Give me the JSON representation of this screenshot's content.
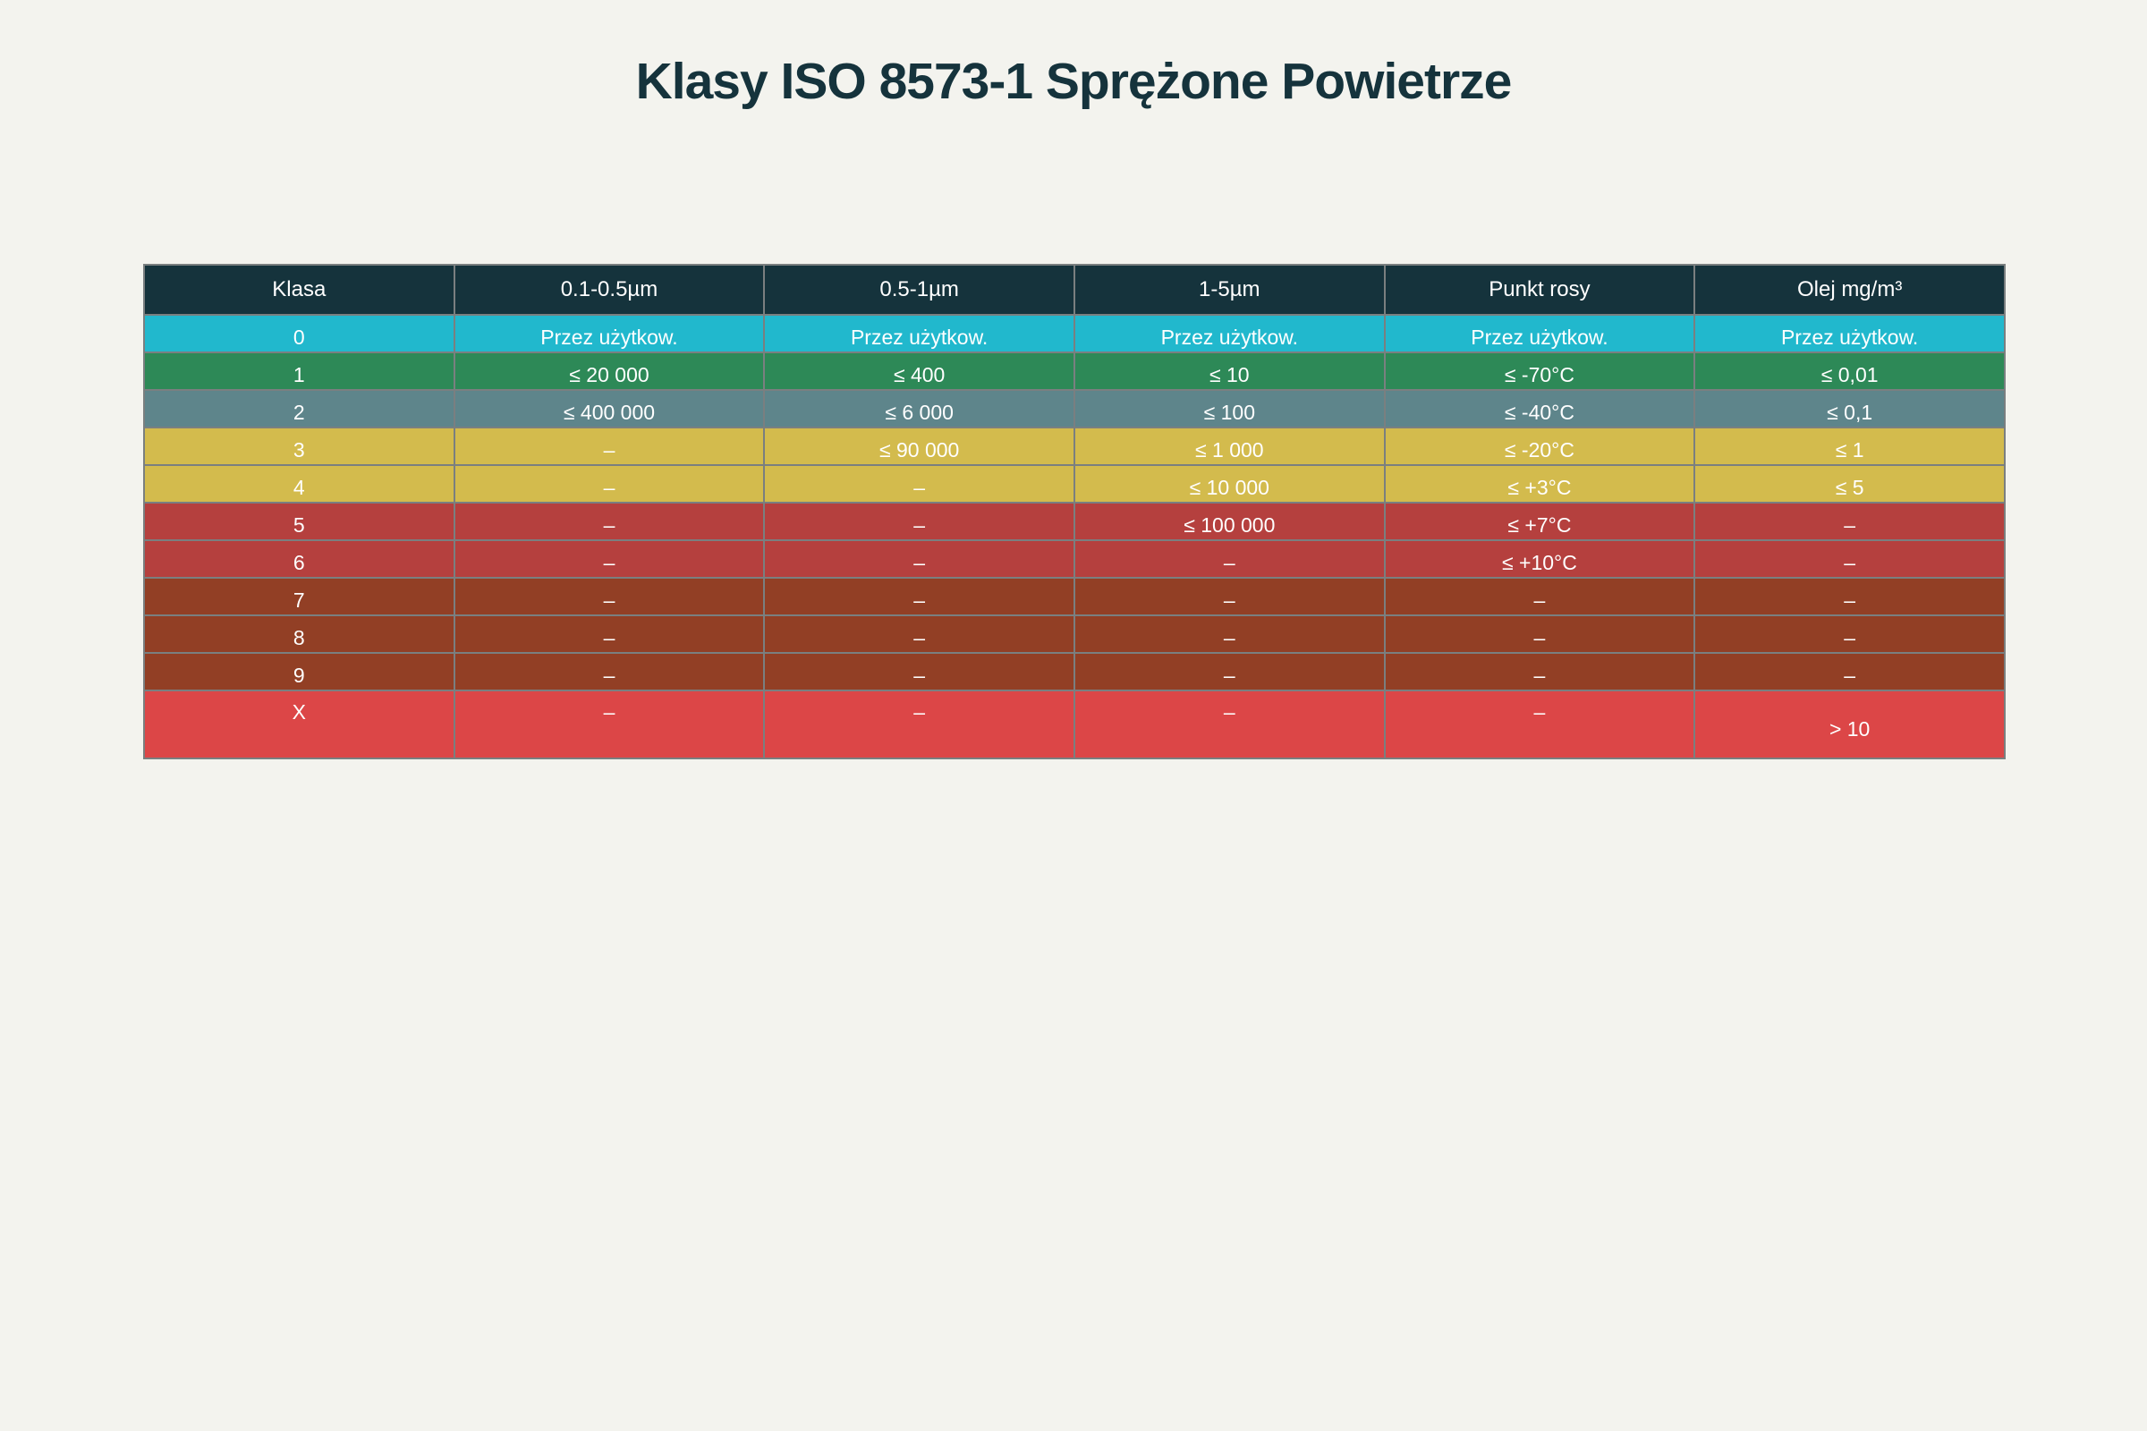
{
  "title": "Klasy ISO 8573-1 Sprężone Powietrze",
  "chart_data": {
    "type": "table",
    "columns": [
      "Klasa",
      "0.1-0.5µm",
      "0.5-1µm",
      "1-5µm",
      "Punkt rosy",
      "Olej mg/m³"
    ],
    "header_color": "#15333c",
    "rows": [
      {
        "color": "#21b8cd",
        "cells": [
          "0",
          "Przez użytkow.",
          "Przez użytkow.",
          "Przez użytkow.",
          "Przez użytkow.",
          "Przez użytkow."
        ]
      },
      {
        "color": "#2d8957",
        "cells": [
          "1",
          "≤ 20 000",
          "≤ 400",
          "≤ 10",
          "≤ -70°C",
          "≤ 0,01"
        ]
      },
      {
        "color": "#5e858b",
        "cells": [
          "2",
          "≤ 400 000",
          "≤ 6 000",
          "≤ 100",
          "≤ -40°C",
          "≤ 0,1"
        ]
      },
      {
        "color": "#d3bb4d",
        "cells": [
          "3",
          "–",
          "≤ 90 000",
          "≤ 1 000",
          "≤ -20°C",
          "≤ 1"
        ]
      },
      {
        "color": "#d3bb4d",
        "cells": [
          "4",
          "–",
          "–",
          "≤ 10 000",
          "≤ +3°C",
          "≤ 5"
        ]
      },
      {
        "color": "#b5403e",
        "cells": [
          "5",
          "–",
          "–",
          "≤ 100 000",
          "≤ +7°C",
          "–"
        ]
      },
      {
        "color": "#b5403e",
        "cells": [
          "6",
          "–",
          "–",
          "–",
          "≤ +10°C",
          "–"
        ]
      },
      {
        "color": "#923f25",
        "cells": [
          "7",
          "–",
          "–",
          "–",
          "–",
          "–"
        ]
      },
      {
        "color": "#923f25",
        "cells": [
          "8",
          "–",
          "–",
          "–",
          "–",
          "–"
        ]
      },
      {
        "color": "#923f25",
        "cells": [
          "9",
          "–",
          "–",
          "–",
          "–",
          "–"
        ]
      },
      {
        "color": "#dc4647",
        "cells": [
          "X",
          "–",
          "–",
          "–",
          "–",
          "> 10"
        ]
      }
    ]
  }
}
